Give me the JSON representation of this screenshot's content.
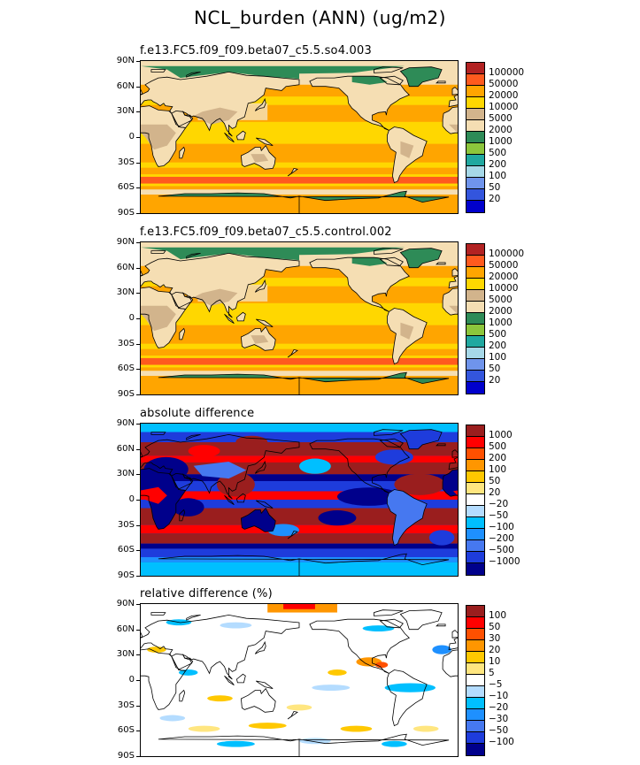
{
  "main_title": "NCL_burden (ANN) (ug/m2)",
  "lat_labels": [
    "90N",
    "60N",
    "30N",
    "0",
    "30S",
    "60S",
    "90S"
  ],
  "coast_color": "#000000",
  "panels": [
    {
      "id": "so4",
      "title": "f.e13.FC5.f09_f09.beta07_c5.5.so4.003",
      "colors": [
        "#0000cc",
        "#3355dd",
        "#6f94ec",
        "#a6d8e8",
        "#20a8a0",
        "#8cc63c",
        "#2e8b57",
        "#f5deb3",
        "#d2b48c",
        "#ffd700",
        "#ffa500",
        "#ff5a1e",
        "#b22222"
      ],
      "levels": [
        "100000",
        "50000",
        "20000",
        "10000",
        "5000",
        "2000",
        "1000",
        "500",
        "200",
        "100",
        "50",
        "20"
      ],
      "field": "burden"
    },
    {
      "id": "control",
      "title": "f.e13.FC5.f09_f09.beta07_c5.5.control.002",
      "colors": [
        "#0000cc",
        "#3355dd",
        "#6f94ec",
        "#a6d8e8",
        "#20a8a0",
        "#8cc63c",
        "#2e8b57",
        "#f5deb3",
        "#d2b48c",
        "#ffd700",
        "#ffa500",
        "#ff5a1e",
        "#b22222"
      ],
      "levels": [
        "100000",
        "50000",
        "20000",
        "10000",
        "5000",
        "2000",
        "1000",
        "500",
        "200",
        "100",
        "50",
        "20"
      ],
      "field": "burden"
    },
    {
      "id": "absdiff",
      "title": "absolute difference",
      "colors": [
        "#00008b",
        "#1e3cdc",
        "#4678f0",
        "#1e90ff",
        "#00bfff",
        "#b4dcff",
        "#ffffff",
        "#ffe680",
        "#ffc800",
        "#ff9600",
        "#ff5000",
        "#ff0000",
        "#9a1e1e"
      ],
      "levels": [
        "1000",
        "500",
        "200",
        "100",
        "50",
        "20",
        "−20",
        "−50",
        "−100",
        "−200",
        "−500",
        "−1000"
      ],
      "field": "absdiff"
    },
    {
      "id": "reldiff",
      "title": "relative difference (%)",
      "colors": [
        "#00008b",
        "#1e3cdc",
        "#4678f0",
        "#1e90ff",
        "#00bfff",
        "#b4dcff",
        "#ffffff",
        "#ffe680",
        "#ffc800",
        "#ff9600",
        "#ff5000",
        "#ff0000",
        "#9a1e1e"
      ],
      "levels": [
        "100",
        "50",
        "30",
        "20",
        "10",
        "5",
        "−5",
        "−10",
        "−20",
        "−30",
        "−50",
        "−100"
      ],
      "field": "reldiff"
    }
  ],
  "chart_data": [
    {
      "type": "heatmap",
      "title": "f.e13.FC5.f09_f09.beta07_c5.5.so4.003",
      "units": "ug/m2",
      "contour_levels": [
        20,
        50,
        100,
        200,
        500,
        1000,
        2000,
        5000,
        10000,
        20000,
        50000,
        100000
      ],
      "ylim": [
        "90S",
        "90N"
      ],
      "xlim": [
        0,
        360
      ],
      "description_of_pattern": [
        "oceans 10000-20000",
        "southern ocean band 50000-100000",
        "antarctica 1000-2000",
        "greenland 1000-2000",
        "continents 2000-5000"
      ]
    },
    {
      "type": "heatmap",
      "title": "f.e13.FC5.f09_f09.beta07_c5.5.control.002",
      "units": "ug/m2",
      "contour_levels": [
        20,
        50,
        100,
        200,
        500,
        1000,
        2000,
        5000,
        10000,
        20000,
        50000,
        100000
      ],
      "ylim": [
        "90S",
        "90N"
      ],
      "xlim": [
        0,
        360
      ]
    },
    {
      "type": "heatmap",
      "title": "absolute difference",
      "contour_levels": [
        -1000,
        -500,
        -200,
        -100,
        -50,
        -20,
        20,
        50,
        100,
        200,
        500,
        1000
      ],
      "ylim": [
        "90S",
        "90N"
      ],
      "xlim": [
        0,
        360
      ]
    },
    {
      "type": "heatmap",
      "title": "relative difference (%)",
      "contour_levels": [
        -100,
        -50,
        -30,
        -20,
        -10,
        -5,
        5,
        10,
        20,
        30,
        50,
        100
      ],
      "ylim": [
        "90S",
        "90N"
      ],
      "xlim": [
        0,
        360
      ]
    }
  ]
}
